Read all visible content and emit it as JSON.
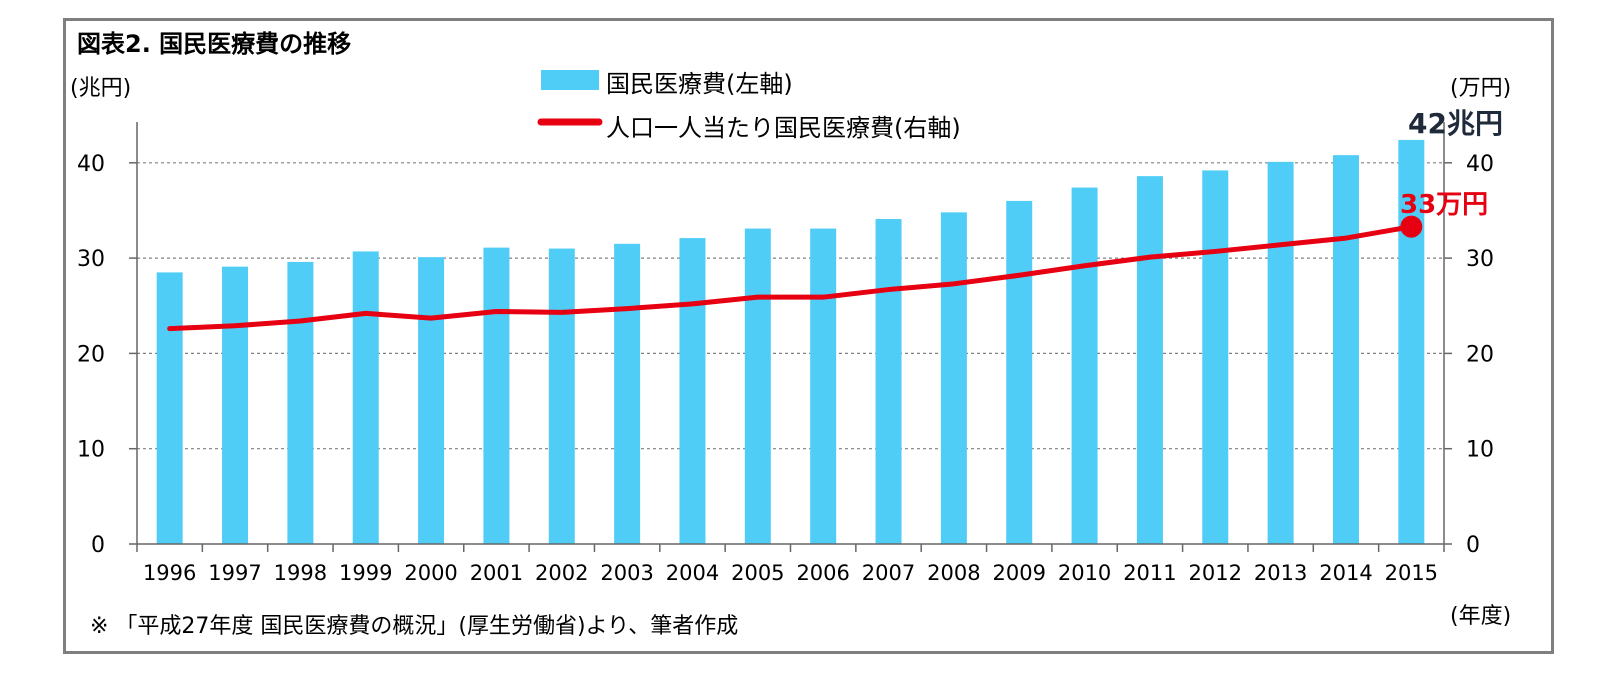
{
  "title": "図表2.  国民医療費の推移",
  "left_unit": "(兆円)",
  "right_unit": "(万円)",
  "x_unit": "(年度)",
  "note": "※ 「平成27年度 国民医療費の概況」(厚生労働省)より、筆者作成",
  "highlights": {
    "total": "42兆円",
    "per_capita": "33万円"
  },
  "chart_data": {
    "type": "bar",
    "categories": [
      "1996",
      "1997",
      "1998",
      "1999",
      "2000",
      "2001",
      "2002",
      "2003",
      "2004",
      "2005",
      "2006",
      "2007",
      "2008",
      "2009",
      "2010",
      "2011",
      "2012",
      "2013",
      "2014",
      "2015"
    ],
    "series": [
      {
        "name": "国民医療費(左軸)",
        "type": "bar",
        "axis": "left",
        "color": "#4fcdf7",
        "values": [
          28.5,
          29.1,
          29.6,
          30.7,
          30.1,
          31.1,
          31.0,
          31.5,
          32.1,
          33.1,
          33.1,
          34.1,
          34.8,
          36.0,
          37.4,
          38.6,
          39.2,
          40.1,
          40.8,
          42.4
        ]
      },
      {
        "name": "人口一人当たり国民医療費(右軸)",
        "type": "line",
        "axis": "right",
        "color": "#e60012",
        "values": [
          22.6,
          22.9,
          23.4,
          24.2,
          23.7,
          24.4,
          24.3,
          24.7,
          25.2,
          25.9,
          25.9,
          26.7,
          27.3,
          28.2,
          29.2,
          30.1,
          30.7,
          31.4,
          32.1,
          33.3
        ]
      }
    ],
    "ylim_left": [
      0,
      42
    ],
    "ylim_right": [
      0,
      42
    ],
    "yticks": [
      "0",
      "10",
      "20",
      "30",
      "40"
    ],
    "grid": true,
    "legend": "top-center"
  }
}
